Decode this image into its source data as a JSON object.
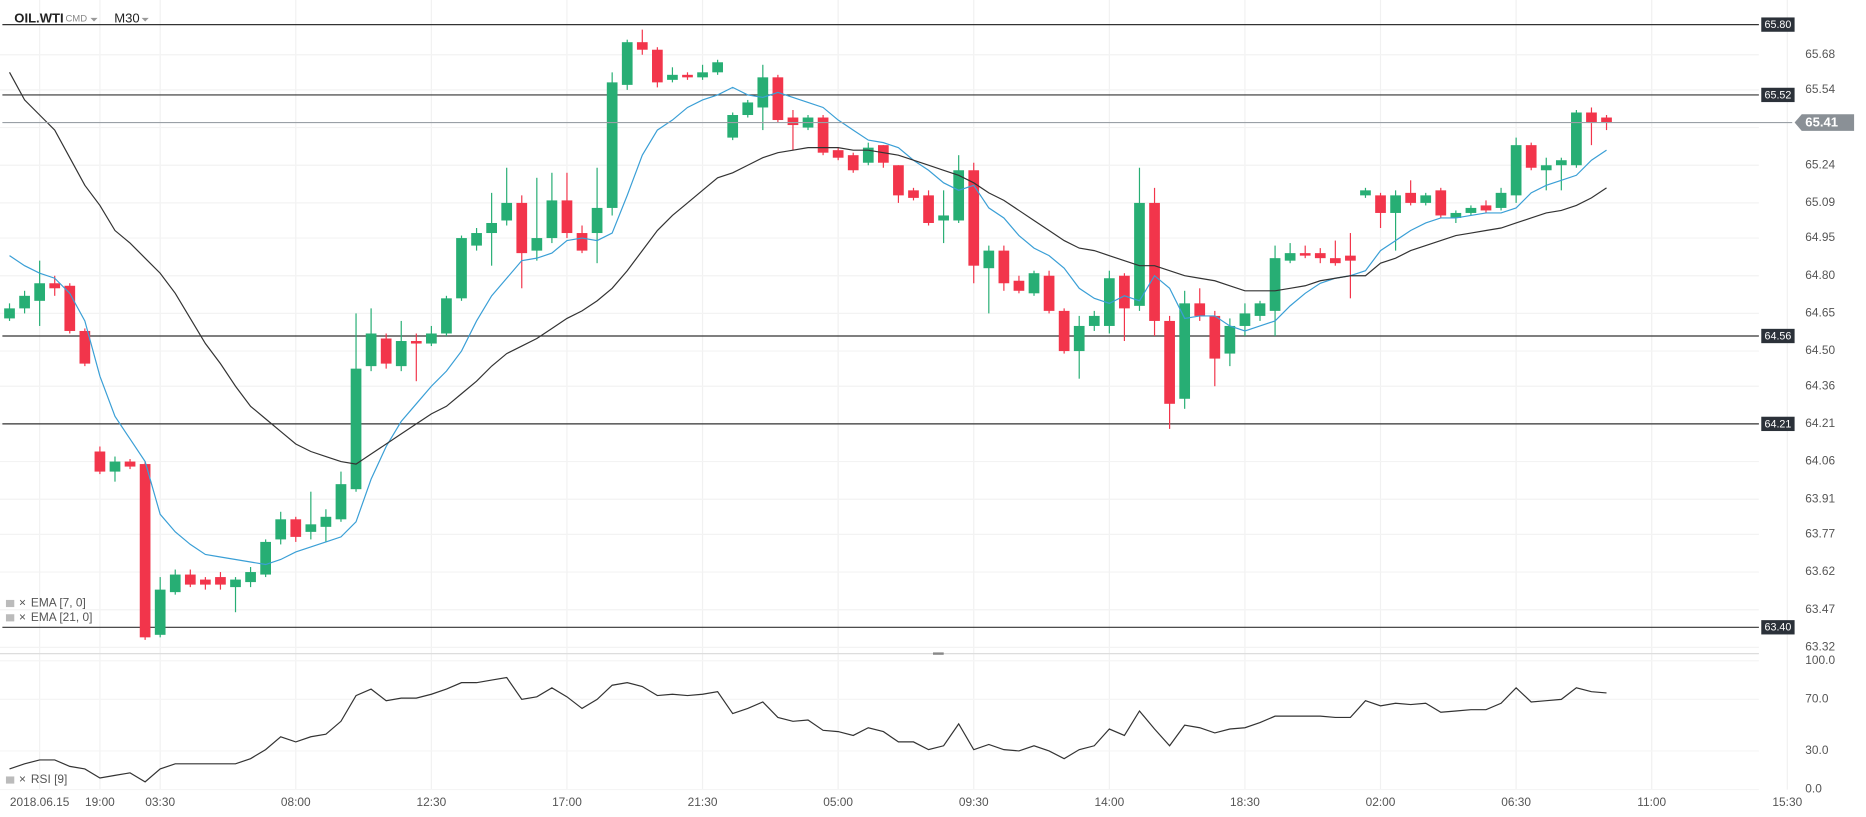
{
  "header": {
    "symbol": "OIL.WTI",
    "market": "CMD",
    "timeframe": "M30"
  },
  "chart_data": [
    {
      "type": "candlestick",
      "categories": [
        null,
        null,
        "2018.06.15",
        null,
        null,
        null,
        "19:00",
        null,
        null,
        null,
        "03:30",
        null,
        null,
        null,
        null,
        null,
        null,
        null,
        null,
        "08:00",
        null,
        null,
        null,
        null,
        null,
        null,
        null,
        null,
        "12:30",
        null,
        null,
        null,
        null,
        null,
        null,
        null,
        null,
        "17:00",
        null,
        null,
        null,
        null,
        null,
        null,
        null,
        null,
        "21:30",
        null,
        null,
        null,
        null,
        null,
        null,
        null,
        null,
        "05:00",
        null,
        null,
        null,
        null,
        null,
        null,
        null,
        null,
        "09:30",
        null,
        null,
        null,
        null,
        null,
        null,
        null,
        null,
        "14:00",
        null,
        null,
        null,
        null,
        null,
        null,
        null,
        null,
        "18:30",
        null,
        null,
        null,
        null,
        null,
        null,
        null,
        null,
        "02:00",
        null,
        null,
        null,
        null,
        null,
        null,
        null,
        null,
        "06:30",
        null,
        null,
        null,
        null,
        null,
        null,
        null,
        null,
        "11:00",
        null,
        null,
        null,
        null,
        null,
        null,
        null,
        null,
        "15:30"
      ],
      "open": [
        64.63,
        64.67,
        64.7,
        64.77,
        64.76,
        64.58,
        64.1,
        64.02,
        64.06,
        64.05,
        63.37,
        63.54,
        63.61,
        63.59,
        63.6,
        63.56,
        63.58,
        63.61,
        63.75,
        63.83,
        63.78,
        63.8,
        63.83,
        63.95,
        64.44,
        64.55,
        64.44,
        64.54,
        64.53,
        64.57,
        64.71,
        64.92,
        64.97,
        65.02,
        65.09,
        64.9,
        64.95,
        65.1,
        64.97,
        64.97,
        65.07,
        65.56,
        65.73,
        65.7,
        65.58,
        65.6,
        65.59,
        65.61,
        65.35,
        65.44,
        65.47,
        65.59,
        65.43,
        65.39,
        65.43,
        65.3,
        65.28,
        65.25,
        65.32,
        65.24,
        65.14,
        65.12,
        65.02,
        65.02,
        65.22,
        64.83,
        64.9,
        64.78,
        64.73,
        64.8,
        64.66,
        64.5,
        64.6,
        64.6,
        64.8,
        64.68,
        65.09,
        64.62,
        64.31,
        64.69,
        64.64,
        64.49,
        64.6,
        64.64,
        64.66,
        64.86,
        64.89,
        64.89,
        64.87,
        64.88,
        65.12,
        65.12,
        65.05,
        65.13,
        65.09,
        65.14,
        65.03,
        65.05,
        65.08,
        65.07,
        65.12,
        65.32,
        65.22,
        65.24,
        65.24,
        65.45,
        65.43,
        null,
        null,
        null,
        null,
        null,
        null,
        null,
        null,
        null,
        null,
        null,
        null
      ],
      "high": [
        64.69,
        64.74,
        64.86,
        64.8,
        64.77,
        64.59,
        64.12,
        64.08,
        64.07,
        64.06,
        63.6,
        63.63,
        63.63,
        63.6,
        63.62,
        63.6,
        63.64,
        63.75,
        63.86,
        63.84,
        63.94,
        63.87,
        64.02,
        64.65,
        64.67,
        64.57,
        64.62,
        64.57,
        64.6,
        64.72,
        64.96,
        64.99,
        65.13,
        65.23,
        65.12,
        65.19,
        65.21,
        65.21,
        65.0,
        65.23,
        65.61,
        65.74,
        65.78,
        65.71,
        65.63,
        65.61,
        65.64,
        65.66,
        65.45,
        65.5,
        65.64,
        65.6,
        65.46,
        65.44,
        65.44,
        65.31,
        65.29,
        65.33,
        65.32,
        65.24,
        65.15,
        65.14,
        65.14,
        65.28,
        65.25,
        64.92,
        64.92,
        64.8,
        64.82,
        64.82,
        64.67,
        64.64,
        64.66,
        64.82,
        64.81,
        65.23,
        65.15,
        64.64,
        64.74,
        64.75,
        64.66,
        64.63,
        64.69,
        64.7,
        64.92,
        64.93,
        64.92,
        64.91,
        64.94,
        64.97,
        65.15,
        65.13,
        65.14,
        65.18,
        65.13,
        65.15,
        65.06,
        65.08,
        65.1,
        65.15,
        65.35,
        65.33,
        65.27,
        65.27,
        65.46,
        65.47,
        65.44,
        null,
        null,
        null,
        null,
        null,
        null,
        null,
        null,
        null,
        null,
        null,
        null
      ],
      "low": [
        64.62,
        64.65,
        64.6,
        64.72,
        64.57,
        64.44,
        64.01,
        63.98,
        64.03,
        63.35,
        63.36,
        63.53,
        63.56,
        63.55,
        63.55,
        63.46,
        63.56,
        63.6,
        63.73,
        63.74,
        63.75,
        63.74,
        63.82,
        63.94,
        64.42,
        64.43,
        64.42,
        64.38,
        64.52,
        64.56,
        64.7,
        64.9,
        64.84,
        65.0,
        64.75,
        64.86,
        64.93,
        64.95,
        64.89,
        64.85,
        65.04,
        65.54,
        65.68,
        65.55,
        65.57,
        65.58,
        65.58,
        65.6,
        65.34,
        65.43,
        65.38,
        65.41,
        65.3,
        65.38,
        65.28,
        65.26,
        65.21,
        65.24,
        65.23,
        65.09,
        65.1,
        65.0,
        64.93,
        65.01,
        64.77,
        64.65,
        64.74,
        64.73,
        64.72,
        64.65,
        64.49,
        64.39,
        64.58,
        64.57,
        64.54,
        64.66,
        64.56,
        64.19,
        64.27,
        64.62,
        64.36,
        64.44,
        64.56,
        64.62,
        64.56,
        64.85,
        64.87,
        64.85,
        64.84,
        64.71,
        65.11,
        64.99,
        64.9,
        65.08,
        65.08,
        65.03,
        65.01,
        65.04,
        65.05,
        65.06,
        65.09,
        65.22,
        65.14,
        65.14,
        65.23,
        65.32,
        65.38,
        null,
        null,
        null,
        null,
        null,
        null,
        null,
        null,
        null,
        null,
        null,
        null
      ],
      "close": [
        64.67,
        64.72,
        64.77,
        64.75,
        64.58,
        64.45,
        64.02,
        64.06,
        64.04,
        63.36,
        63.55,
        63.61,
        63.57,
        63.57,
        63.57,
        63.59,
        63.62,
        63.74,
        63.83,
        63.76,
        63.81,
        63.84,
        63.97,
        64.43,
        64.57,
        64.45,
        64.54,
        64.53,
        64.57,
        64.71,
        64.95,
        64.97,
        65.01,
        65.09,
        64.89,
        64.95,
        65.1,
        64.97,
        64.9,
        65.07,
        65.57,
        65.73,
        65.7,
        65.57,
        65.6,
        65.59,
        65.61,
        65.65,
        65.44,
        65.49,
        65.59,
        65.42,
        65.4,
        65.43,
        65.29,
        65.27,
        65.22,
        65.31,
        65.25,
        65.12,
        65.11,
        65.01,
        65.04,
        65.22,
        64.84,
        64.9,
        64.77,
        64.74,
        64.81,
        64.66,
        64.5,
        64.6,
        64.64,
        64.79,
        64.67,
        65.09,
        64.62,
        64.29,
        64.69,
        64.64,
        64.47,
        64.6,
        64.65,
        64.69,
        64.87,
        64.89,
        64.88,
        64.87,
        64.85,
        64.86,
        65.14,
        65.05,
        65.12,
        65.09,
        65.12,
        65.04,
        65.05,
        65.07,
        65.06,
        65.13,
        65.32,
        65.23,
        65.24,
        65.26,
        65.45,
        65.41,
        65.41,
        null,
        null,
        null,
        null,
        null,
        null,
        null,
        null,
        null,
        null,
        null,
        null
      ],
      "up_color": "#27ae74",
      "down_color": "#f2354b",
      "series": [
        {
          "name": "EMA [7, 0]",
          "color": "#3a9fd6",
          "values": [
            64.88,
            64.84,
            64.81,
            64.79,
            64.73,
            64.62,
            64.4,
            64.24,
            64.15,
            64.06,
            63.85,
            63.78,
            63.73,
            63.69,
            63.68,
            63.67,
            63.66,
            63.65,
            63.67,
            63.7,
            63.72,
            63.74,
            63.76,
            63.82,
            63.99,
            64.12,
            64.22,
            64.29,
            64.36,
            64.42,
            64.5,
            64.62,
            64.72,
            64.79,
            64.86,
            64.87,
            64.89,
            64.94,
            64.95,
            64.94,
            64.97,
            65.12,
            65.28,
            65.38,
            65.42,
            65.47,
            65.5,
            65.52,
            65.55,
            65.52,
            65.51,
            65.53,
            65.51,
            65.49,
            65.47,
            65.42,
            65.38,
            65.34,
            65.33,
            65.31,
            65.26,
            65.22,
            65.17,
            65.14,
            65.16,
            65.07,
            65.03,
            64.96,
            64.91,
            64.88,
            64.83,
            64.75,
            64.71,
            64.69,
            64.72,
            64.7,
            64.8,
            64.75,
            64.63,
            64.64,
            64.64,
            64.6,
            64.58,
            64.6,
            64.62,
            64.68,
            64.73,
            64.77,
            64.79,
            64.8,
            64.82,
            64.9,
            64.94,
            64.98,
            65.01,
            65.03,
            65.03,
            65.04,
            65.05,
            65.05,
            65.07,
            65.13,
            65.16,
            65.18,
            65.2,
            65.26,
            65.3,
            null,
            null,
            null,
            null,
            null,
            null,
            null,
            null,
            null,
            null,
            null,
            null
          ]
        },
        {
          "name": "EMA [21, 0]",
          "color": "#333333",
          "values": [
            65.61,
            65.5,
            65.44,
            65.38,
            65.27,
            65.16,
            65.08,
            64.98,
            64.93,
            64.87,
            64.81,
            64.73,
            64.63,
            64.53,
            64.45,
            64.36,
            64.28,
            64.23,
            64.18,
            64.13,
            64.1,
            64.08,
            64.06,
            64.05,
            64.09,
            64.13,
            64.17,
            64.21,
            64.25,
            64.28,
            64.33,
            64.38,
            64.44,
            64.49,
            64.52,
            64.55,
            64.59,
            64.63,
            64.66,
            64.7,
            64.75,
            64.82,
            64.9,
            64.98,
            65.04,
            65.09,
            65.14,
            65.19,
            65.21,
            65.24,
            65.27,
            65.29,
            65.3,
            65.31,
            65.31,
            65.31,
            65.3,
            65.3,
            65.29,
            65.28,
            65.26,
            65.24,
            65.22,
            65.2,
            65.17,
            65.13,
            65.1,
            65.06,
            65.02,
            64.98,
            64.94,
            64.91,
            64.9,
            64.88,
            64.86,
            64.84,
            64.84,
            64.82,
            64.8,
            64.79,
            64.78,
            64.76,
            64.74,
            64.74,
            64.74,
            64.75,
            64.76,
            64.78,
            64.79,
            64.8,
            64.8,
            64.85,
            64.87,
            64.9,
            64.92,
            64.94,
            64.96,
            64.97,
            64.98,
            64.99,
            65.01,
            65.03,
            65.05,
            65.06,
            65.08,
            65.11,
            65.15,
            null,
            null,
            null,
            null,
            null,
            null,
            null,
            null,
            null,
            null,
            null,
            null
          ]
        }
      ],
      "ylim": [
        63.3,
        65.86
      ],
      "yticks": [
        65.68,
        65.54,
        65.39,
        65.24,
        65.09,
        64.95,
        {
          "value": 64.8,
          "label": "64.80"
        },
        64.65,
        {
          "value": 64.5,
          "label": "64.50"
        },
        64.36,
        64.21,
        64.06,
        63.91,
        63.77,
        63.62,
        63.47,
        63.32
      ],
      "levels": [
        {
          "value": 65.8,
          "label": "65.80"
        },
        65.52,
        64.56,
        64.21,
        {
          "value": 63.4,
          "label": "63.40"
        }
      ],
      "last_price": 65.41,
      "grid": true
    },
    {
      "type": "line",
      "series": [
        {
          "name": "RSI [9]",
          "color": "#333333",
          "values": [
            16,
            20,
            23,
            23,
            18,
            16,
            9,
            11,
            13,
            6,
            16,
            20,
            20,
            20,
            20,
            20,
            24,
            31,
            41,
            37,
            41,
            43,
            53,
            73,
            78,
            69,
            71,
            71,
            74,
            78,
            83,
            83,
            85,
            87,
            70,
            72,
            79,
            72,
            63,
            70,
            81,
            83,
            80,
            73,
            74,
            73,
            74,
            76,
            59,
            63,
            68,
            56,
            53,
            54,
            46,
            45,
            42,
            48,
            45,
            37,
            37,
            31,
            34,
            51,
            31,
            35,
            31,
            30,
            34,
            30,
            24,
            31,
            34,
            47,
            42,
            61,
            47,
            34,
            50,
            48,
            44,
            47,
            48,
            52,
            57,
            57,
            57,
            57,
            56,
            56,
            69,
            65,
            67,
            66,
            67,
            60,
            61,
            62,
            62,
            67,
            79,
            68,
            69,
            70,
            79,
            76,
            75,
            null,
            null,
            null,
            null,
            null,
            null,
            null,
            null,
            null,
            null,
            null,
            null
          ]
        }
      ],
      "ylim": [
        0,
        100
      ],
      "yticks": [
        {
          "value": 100,
          "label": "100.0"
        },
        {
          "value": 70,
          "label": "70.0"
        },
        {
          "value": 30,
          "label": "30.0"
        },
        {
          "value": 0,
          "label": "0.0"
        }
      ]
    }
  ]
}
